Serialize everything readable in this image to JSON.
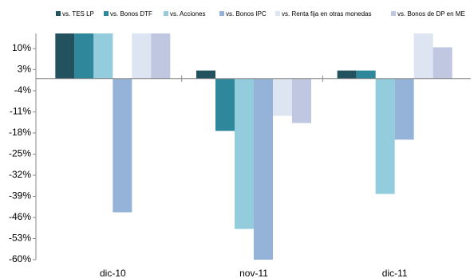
{
  "chart_data": {
    "type": "bar",
    "categories": [
      "dic-10",
      "nov-11",
      "dic-11"
    ],
    "series": [
      {
        "name": "vs. TES LP",
        "color": "#21525e",
        "values": [
          15,
          2.7,
          2.7
        ]
      },
      {
        "name": "vs. Bonos DTF",
        "color": "#2f879b",
        "values": [
          15,
          -17.3,
          2.7
        ]
      },
      {
        "name": "vs. Acciones",
        "color": "#93cddd",
        "values": [
          15,
          -49.8,
          -38.2
        ]
      },
      {
        "name": "vs. Bonos IPC",
        "color": "#95b2d8",
        "values": [
          -44.3,
          -60,
          -20.2
        ]
      },
      {
        "name": "vs. Renta fija en otras monedas",
        "color": "#dce5f1",
        "values": [
          15,
          -12.3,
          15
        ]
      },
      {
        "name": "vs. Bonos de DP en ME",
        "color": "#bfc8e0",
        "values": [
          15,
          -14.7,
          10.4
        ]
      }
    ],
    "ylim": [
      -60,
      15
    ],
    "yticks": [
      {
        "value": 10,
        "label": "10%"
      },
      {
        "value": 3,
        "label": "3%"
      },
      {
        "value": -4,
        "label": "-4%"
      },
      {
        "value": -11,
        "label": "-11%"
      },
      {
        "value": -18,
        "label": "-18%"
      },
      {
        "value": -25,
        "label": "-25%"
      },
      {
        "value": -32,
        "label": "-32%"
      },
      {
        "value": -39,
        "label": "-39%"
      },
      {
        "value": -46,
        "label": "-46%"
      },
      {
        "value": -53,
        "label": "-53%"
      },
      {
        "value": -60,
        "label": "-60%"
      }
    ]
  }
}
